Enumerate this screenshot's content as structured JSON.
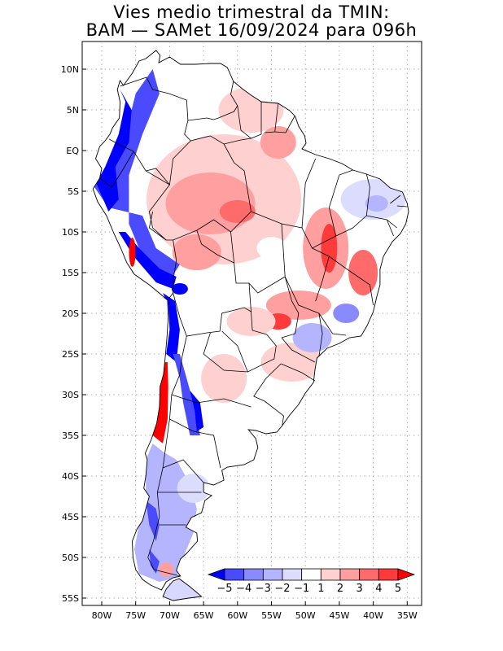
{
  "title": {
    "line1": "Vies medio trimestral da TMIN:",
    "line2": "BAM — SAMet 16/09/2024  para 096h"
  },
  "axes": {
    "lat_labels": [
      "10N",
      "5N",
      "EQ",
      "5S",
      "10S",
      "15S",
      "20S",
      "25S",
      "30S",
      "35S",
      "40S",
      "45S",
      "50S",
      "55S"
    ],
    "lat_values": [
      10,
      5,
      0,
      -5,
      -10,
      -15,
      -20,
      -25,
      -30,
      -35,
      -40,
      -45,
      -50,
      -55
    ],
    "lon_labels": [
      "80W",
      "75W",
      "70W",
      "65W",
      "60W",
      "55W",
      "50W",
      "45W",
      "40W",
      "35W"
    ],
    "lon_values": [
      -80,
      -75,
      -70,
      -65,
      -60,
      -55,
      -50,
      -45,
      -40,
      -35
    ],
    "lon_range": [
      -83,
      -34
    ],
    "lat_range": [
      -56,
      13
    ],
    "grid": "dotted"
  },
  "colorbar": {
    "labels": [
      "−5",
      "−4",
      "−3",
      "−2",
      "−1",
      "1",
      "2",
      "3",
      "4",
      "5"
    ],
    "colors": [
      "#0000ff",
      "#4a4aff",
      "#8a8aff",
      "#b4b4ff",
      "#dcdcff",
      "#ffffff",
      "#ffd0d0",
      "#ff9f9f",
      "#ff6a6a",
      "#ff3a3a",
      "#ff0000"
    ]
  },
  "colors": {
    "land": "#ffffff",
    "border": "#000000",
    "grid": "#999999"
  }
}
